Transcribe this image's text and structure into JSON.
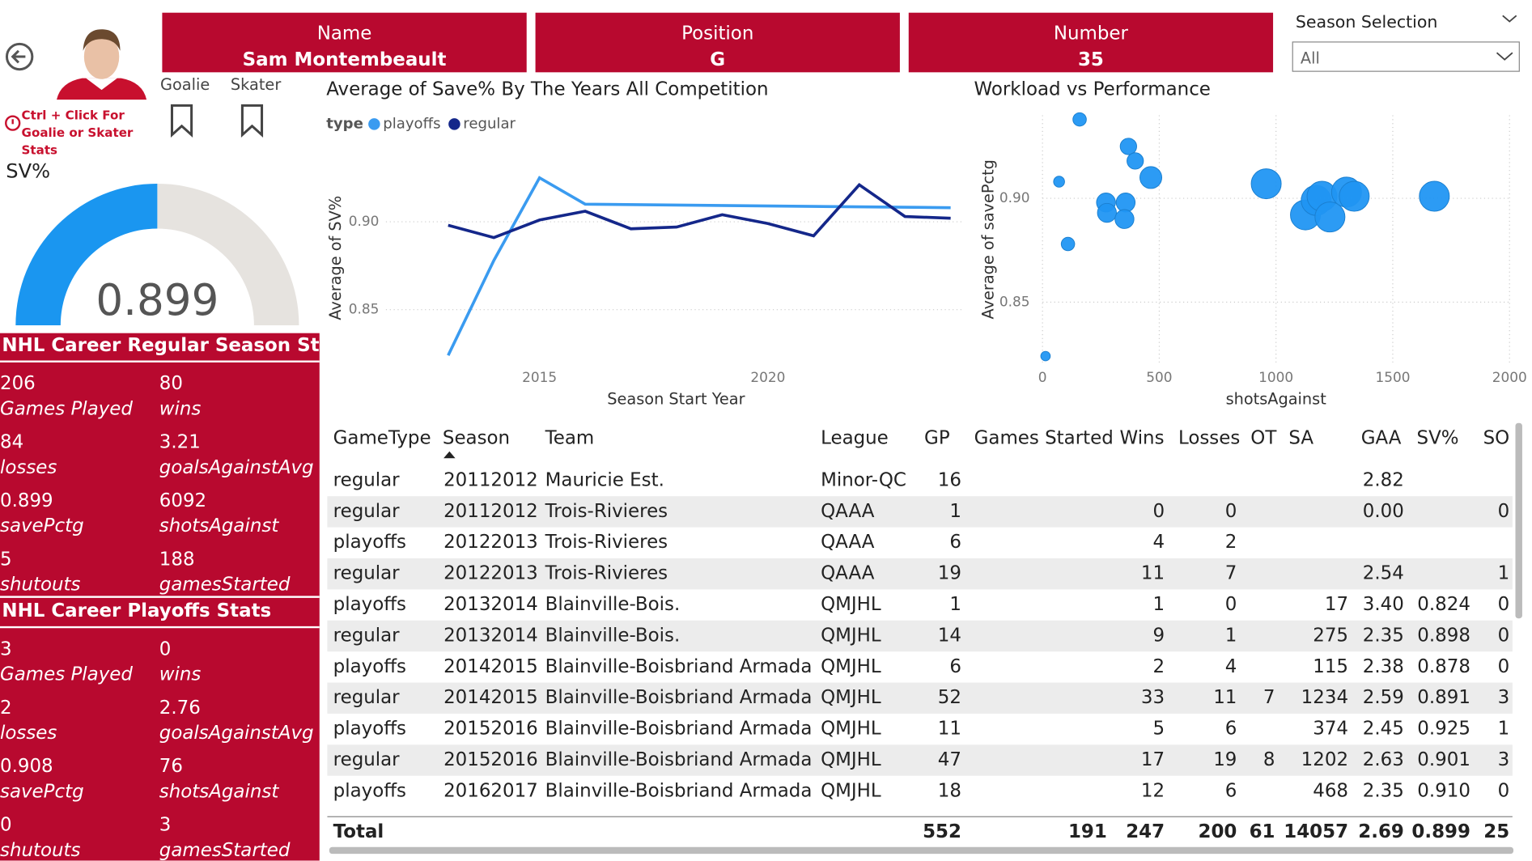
{
  "header": {
    "name_label": "Name",
    "name": "Sam Montembeault",
    "position_label": "Position",
    "position": "G",
    "number_label": "Number",
    "number": "35"
  },
  "nav": {
    "hint": "Ctrl + Click For Goalie or Skater Stats",
    "goalie": "Goalie",
    "skater": "Skater"
  },
  "season_selection": {
    "label": "Season Selection",
    "value": "All"
  },
  "gauge": {
    "title": "SV%",
    "value": 0.899
  },
  "regular_stats": {
    "title": "NHL Career Regular Season Stats",
    "items": [
      {
        "value": "206",
        "label": "Games Played"
      },
      {
        "value": "80",
        "label": "wins"
      },
      {
        "value": "84",
        "label": "losses"
      },
      {
        "value": "3.21",
        "label": "goalsAgainstAvg"
      },
      {
        "value": "0.899",
        "label": "savePctg"
      },
      {
        "value": "6092",
        "label": "shotsAgainst"
      },
      {
        "value": "5",
        "label": "shutouts"
      },
      {
        "value": "188",
        "label": "gamesStarted"
      }
    ]
  },
  "playoff_stats": {
    "title": "NHL Career Playoffs Stats",
    "items": [
      {
        "value": "3",
        "label": "Games Played"
      },
      {
        "value": "0",
        "label": "wins"
      },
      {
        "value": "2",
        "label": "losses"
      },
      {
        "value": "2.76",
        "label": "goalsAgainstAvg"
      },
      {
        "value": "0.908",
        "label": "savePctg"
      },
      {
        "value": "76",
        "label": "shotsAgainst"
      },
      {
        "value": "0",
        "label": "shutouts"
      },
      {
        "value": "3",
        "label": "gamesStarted"
      }
    ]
  },
  "chart_data": [
    {
      "type": "line",
      "title": "Average of Save% By The Years All Competition",
      "legend_title": "type",
      "x_label": "Season Start Year",
      "y_label": "Average of SV%",
      "series": [
        {
          "name": "playoffs",
          "color": "#3a9bf0",
          "x": [
            2013,
            2014,
            2015,
            2016,
            2024
          ],
          "values": [
            0.824,
            0.878,
            0.925,
            0.91,
            0.908
          ]
        },
        {
          "name": "regular",
          "color": "#14278a",
          "x": [
            2013,
            2014,
            2015,
            2016,
            2017,
            2018,
            2019,
            2020,
            2021,
            2022,
            2023,
            2024
          ],
          "values": [
            0.898,
            0.891,
            0.901,
            0.906,
            0.896,
            0.897,
            0.904,
            0.899,
            0.892,
            0.921,
            0.903,
            0.902
          ]
        }
      ],
      "xlim": [
        2012.6,
        2024.3
      ],
      "xticks": [
        2015,
        2020
      ],
      "ylim": [
        0.82,
        0.96
      ],
      "yticks": [
        0.85,
        {
          "value": 0.9,
          "label": "0.90"
        }
      ],
      "grid": true
    },
    {
      "type": "scatter",
      "title": "Workload vs Performance",
      "x_label": "shotsAgainst",
      "y_label": "Average of savePctg",
      "color": "#2196f3",
      "x": [
        159,
        71,
        109,
        13,
        368,
        397,
        464,
        272,
        276,
        356,
        351,
        958,
        1126,
        1172,
        1197,
        1231,
        1302,
        1335,
        1678
      ],
      "values": [
        0.938,
        0.908,
        0.878,
        0.824,
        0.925,
        0.918,
        0.91,
        0.898,
        0.893,
        0.898,
        0.89,
        0.907,
        0.892,
        0.899,
        0.901,
        0.891,
        0.903,
        0.901,
        0.901
      ],
      "sizes": [
        6,
        4,
        6,
        3,
        9,
        9,
        16,
        12,
        12,
        12,
        12,
        30,
        30,
        30,
        30,
        30,
        30,
        30,
        30
      ],
      "xlim": [
        0,
        2000
      ],
      "xticks": [
        0,
        500,
        1000,
        1500,
        2000
      ],
      "ylim": [
        0.82,
        0.94
      ],
      "yticks": [
        0.85,
        {
          "value": 0.9,
          "label": "0.90"
        }
      ],
      "grid": true
    }
  ],
  "table": {
    "columns": [
      "GameType",
      "Season",
      "Team",
      "League",
      "GP",
      "Games Started",
      "Wins",
      "Losses",
      "OT",
      "SA",
      "GAA",
      "SV%",
      "SO"
    ],
    "rows": [
      [
        "regular",
        "20112012",
        "Mauricie Est.",
        "Minor-QC",
        "16",
        null,
        null,
        null,
        null,
        null,
        "2.82",
        null,
        null
      ],
      [
        "regular",
        "20112012",
        "Trois-Rivieres",
        "QAAA",
        "1",
        null,
        "0",
        "0",
        null,
        null,
        "0.00",
        null,
        "0"
      ],
      [
        "playoffs",
        "20122013",
        "Trois-Rivieres",
        "QAAA",
        "6",
        null,
        "4",
        "2",
        null,
        null,
        null,
        null,
        null
      ],
      [
        "regular",
        "20122013",
        "Trois-Rivieres",
        "QAAA",
        "19",
        null,
        "11",
        "7",
        null,
        null,
        "2.54",
        null,
        "1"
      ],
      [
        "playoffs",
        "20132014",
        "Blainville-Bois.",
        "QMJHL",
        "1",
        null,
        "1",
        "0",
        null,
        "17",
        "3.40",
        "0.824",
        "0"
      ],
      [
        "regular",
        "20132014",
        "Blainville-Bois.",
        "QMJHL",
        "14",
        null,
        "9",
        "1",
        null,
        "275",
        "2.35",
        "0.898",
        "0"
      ],
      [
        "playoffs",
        "20142015",
        "Blainville-Boisbriand Armada",
        "QMJHL",
        "6",
        null,
        "2",
        "4",
        null,
        "115",
        "2.38",
        "0.878",
        "0"
      ],
      [
        "regular",
        "20142015",
        "Blainville-Boisbriand Armada",
        "QMJHL",
        "52",
        null,
        "33",
        "11",
        "7",
        "1234",
        "2.59",
        "0.891",
        "3"
      ],
      [
        "playoffs",
        "20152016",
        "Blainville-Boisbriand Armada",
        "QMJHL",
        "11",
        null,
        "5",
        "6",
        null,
        "374",
        "2.45",
        "0.925",
        "1"
      ],
      [
        "regular",
        "20152016",
        "Blainville-Boisbriand Armada",
        "QMJHL",
        "47",
        null,
        "17",
        "19",
        "8",
        "1202",
        "2.63",
        "0.901",
        "3"
      ],
      [
        "playoffs",
        "20162017",
        "Blainville-Boisbriand Armada",
        "QMJHL",
        "18",
        null,
        "12",
        "6",
        null,
        "468",
        "2.35",
        "0.910",
        "0"
      ]
    ],
    "total": [
      "Total",
      null,
      null,
      null,
      "552",
      "191",
      "247",
      "200",
      "61",
      "14057",
      "2.69",
      "0.899",
      "25"
    ]
  }
}
